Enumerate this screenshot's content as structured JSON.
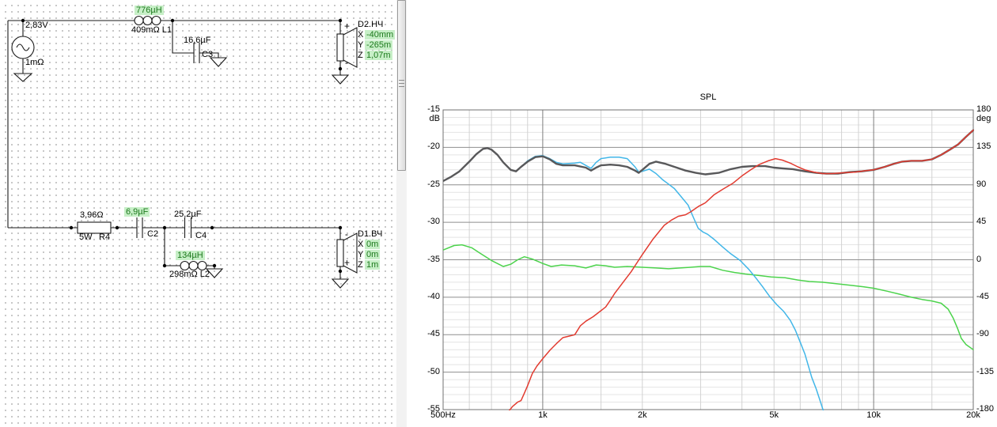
{
  "schematic": {
    "source": {
      "voltage": "2,83V",
      "impedance": "1mΩ"
    },
    "l1": {
      "value": "776µH",
      "detail": "409mΩ L1"
    },
    "c3": {
      "value": "16,6µF",
      "ref": "C3"
    },
    "r4": {
      "value": "3,96Ω",
      "power": "5W",
      "ref": "R4"
    },
    "c2": {
      "value": "6,9µF",
      "ref": "C2"
    },
    "c4": {
      "value": "25,2µF",
      "ref": "C4"
    },
    "l2": {
      "value": "134µH",
      "detail": "298mΩ L2"
    },
    "d2": {
      "name": "D2.НЧ",
      "polarity_top": "+",
      "polarity_bottom": "-",
      "rows": [
        {
          "k": "X",
          "v": "-40mm"
        },
        {
          "k": "Y",
          "v": "-265m"
        },
        {
          "k": "Z",
          "v": "1,07m"
        }
      ]
    },
    "d1": {
      "name": "D1.ВЧ",
      "polarity_top": "-",
      "polarity_bottom": "+",
      "rows": [
        {
          "k": "X",
          "v": "0m"
        },
        {
          "k": "Y",
          "v": "0m"
        },
        {
          "k": "Z",
          "v": "1m"
        }
      ]
    }
  },
  "chart_data": {
    "type": "line",
    "title": "SPL",
    "grid": true,
    "x_axis": {
      "scale": "log",
      "min": 500,
      "max": 20000,
      "ticks": [
        {
          "f": 500,
          "label": "500Hz"
        },
        {
          "f": 1000,
          "label": "1k"
        },
        {
          "f": 2000,
          "label": "2k"
        },
        {
          "f": 5000,
          "label": "5k"
        },
        {
          "f": 10000,
          "label": "10k"
        },
        {
          "f": 20000,
          "label": "20k"
        }
      ],
      "major_gridlines": [
        1000,
        10000
      ],
      "minor_gridlines": [
        600,
        700,
        800,
        900,
        1500,
        2000,
        3000,
        4000,
        5000,
        6000,
        7000,
        8000,
        9000,
        15000
      ]
    },
    "y_left": {
      "unit": "dB",
      "min": -55,
      "max": -15,
      "major_step": 5,
      "minor_step": 1,
      "ticks": [
        {
          "v": -15,
          "label": "-15"
        },
        {
          "v": -20,
          "label": "-20"
        },
        {
          "v": -25,
          "label": "-25"
        },
        {
          "v": -30,
          "label": "-30"
        },
        {
          "v": -35,
          "label": "-35"
        },
        {
          "v": -40,
          "label": "-40"
        },
        {
          "v": -45,
          "label": "-45"
        },
        {
          "v": -50,
          "label": "-50"
        },
        {
          "v": -55,
          "label": "-55"
        }
      ]
    },
    "y_right": {
      "unit": "deg",
      "min": -180,
      "max": 180,
      "ticks": [
        {
          "v": 180,
          "label": "180"
        },
        {
          "v": 135,
          "label": "135"
        },
        {
          "v": 90,
          "label": "90"
        },
        {
          "v": 45,
          "label": "45"
        },
        {
          "v": 0,
          "label": "0"
        },
        {
          "v": -45,
          "label": "-45"
        },
        {
          "v": -90,
          "label": "-90"
        },
        {
          "v": -135,
          "label": "-135"
        },
        {
          "v": -180,
          "label": "-180"
        }
      ]
    },
    "series": [
      {
        "name": "green-aux-curve",
        "color": "#4cd34c",
        "width": 1.5,
        "points": [
          [
            500,
            -33.7
          ],
          [
            540,
            -33.1
          ],
          [
            570,
            -33.0
          ],
          [
            610,
            -33.4
          ],
          [
            650,
            -34.2
          ],
          [
            700,
            -35.1
          ],
          [
            760,
            -35.9
          ],
          [
            800,
            -35.6
          ],
          [
            840,
            -35.0
          ],
          [
            880,
            -34.6
          ],
          [
            930,
            -34.9
          ],
          [
            1000,
            -35.5
          ],
          [
            1060,
            -35.9
          ],
          [
            1140,
            -35.7
          ],
          [
            1250,
            -35.8
          ],
          [
            1350,
            -36.1
          ],
          [
            1450,
            -35.7
          ],
          [
            1550,
            -35.8
          ],
          [
            1650,
            -36.0
          ],
          [
            1800,
            -35.9
          ],
          [
            2000,
            -36.0
          ],
          [
            2200,
            -36.1
          ],
          [
            2400,
            -36.2
          ],
          [
            2600,
            -36.1
          ],
          [
            2800,
            -36.0
          ],
          [
            3000,
            -35.9
          ],
          [
            3200,
            -35.9
          ],
          [
            3500,
            -36.4
          ],
          [
            3800,
            -36.7
          ],
          [
            4100,
            -36.9
          ],
          [
            4500,
            -37.1
          ],
          [
            4900,
            -37.3
          ],
          [
            5400,
            -37.4
          ],
          [
            5900,
            -37.7
          ],
          [
            6400,
            -37.9
          ],
          [
            7000,
            -38.0
          ],
          [
            7700,
            -38.2
          ],
          [
            8500,
            -38.4
          ],
          [
            9300,
            -38.6
          ],
          [
            10000,
            -38.8
          ],
          [
            11000,
            -39.2
          ],
          [
            12000,
            -39.6
          ],
          [
            13000,
            -40.0
          ],
          [
            14000,
            -40.3
          ],
          [
            15000,
            -40.5
          ],
          [
            16000,
            -40.8
          ],
          [
            16800,
            -41.6
          ],
          [
            17400,
            -42.8
          ],
          [
            17900,
            -44.1
          ],
          [
            18400,
            -45.5
          ],
          [
            19000,
            -46.3
          ],
          [
            20000,
            -47.0
          ]
        ]
      },
      {
        "name": "woofer-lowpass",
        "color": "#41b6e8",
        "width": 1.5,
        "points": [
          [
            500,
            -24.5
          ],
          [
            530,
            -23.9
          ],
          [
            560,
            -23.2
          ],
          [
            600,
            -21.9
          ],
          [
            630,
            -20.9
          ],
          [
            660,
            -20.2
          ],
          [
            680,
            -20.1
          ],
          [
            700,
            -20.3
          ],
          [
            730,
            -21.0
          ],
          [
            760,
            -22.0
          ],
          [
            800,
            -23.0
          ],
          [
            830,
            -23.2
          ],
          [
            860,
            -22.6
          ],
          [
            900,
            -21.8
          ],
          [
            950,
            -21.2
          ],
          [
            1000,
            -21.1
          ],
          [
            1050,
            -21.5
          ],
          [
            1100,
            -22.0
          ],
          [
            1150,
            -22.2
          ],
          [
            1250,
            -22.1
          ],
          [
            1300,
            -22.0
          ],
          [
            1400,
            -22.8
          ],
          [
            1450,
            -22.0
          ],
          [
            1500,
            -21.5
          ],
          [
            1600,
            -21.3
          ],
          [
            1700,
            -21.3
          ],
          [
            1800,
            -21.5
          ],
          [
            1900,
            -22.6
          ],
          [
            1950,
            -23.3
          ],
          [
            2000,
            -23.2
          ],
          [
            2100,
            -22.9
          ],
          [
            2200,
            -23.5
          ],
          [
            2300,
            -24.3
          ],
          [
            2400,
            -24.9
          ],
          [
            2500,
            -25.5
          ],
          [
            2600,
            -26.4
          ],
          [
            2750,
            -27.7
          ],
          [
            2850,
            -29.3
          ],
          [
            2950,
            -30.8
          ],
          [
            3050,
            -31.3
          ],
          [
            3150,
            -31.6
          ],
          [
            3300,
            -32.3
          ],
          [
            3500,
            -33.3
          ],
          [
            3700,
            -34.2
          ],
          [
            3950,
            -35.1
          ],
          [
            4200,
            -36.3
          ],
          [
            4400,
            -37.4
          ],
          [
            4600,
            -38.5
          ],
          [
            4850,
            -39.9
          ],
          [
            5100,
            -41.0
          ],
          [
            5350,
            -41.9
          ],
          [
            5600,
            -43.1
          ],
          [
            5800,
            -44.4
          ],
          [
            6000,
            -46.0
          ],
          [
            6200,
            -47.6
          ],
          [
            6500,
            -50.7
          ],
          [
            6700,
            -52.2
          ],
          [
            6900,
            -53.9
          ],
          [
            7100,
            -55.6
          ]
        ]
      },
      {
        "name": "system-sum",
        "color": "#58585a",
        "width": 2.4,
        "points": [
          [
            500,
            -24.5
          ],
          [
            530,
            -23.9
          ],
          [
            560,
            -23.2
          ],
          [
            600,
            -21.9
          ],
          [
            630,
            -20.9
          ],
          [
            660,
            -20.2
          ],
          [
            680,
            -20.1
          ],
          [
            700,
            -20.3
          ],
          [
            730,
            -21.0
          ],
          [
            760,
            -22.0
          ],
          [
            800,
            -23.0
          ],
          [
            830,
            -23.2
          ],
          [
            860,
            -22.6
          ],
          [
            900,
            -21.9
          ],
          [
            950,
            -21.3
          ],
          [
            1000,
            -21.2
          ],
          [
            1050,
            -21.6
          ],
          [
            1100,
            -22.2
          ],
          [
            1150,
            -22.4
          ],
          [
            1250,
            -22.4
          ],
          [
            1350,
            -22.7
          ],
          [
            1400,
            -23.1
          ],
          [
            1450,
            -22.7
          ],
          [
            1500,
            -22.4
          ],
          [
            1600,
            -22.3
          ],
          [
            1700,
            -22.4
          ],
          [
            1800,
            -22.6
          ],
          [
            1900,
            -23.1
          ],
          [
            1950,
            -23.4
          ],
          [
            2000,
            -23.0
          ],
          [
            2100,
            -22.2
          ],
          [
            2200,
            -21.9
          ],
          [
            2350,
            -22.2
          ],
          [
            2500,
            -22.6
          ],
          [
            2700,
            -23.1
          ],
          [
            2900,
            -23.4
          ],
          [
            3100,
            -23.6
          ],
          [
            3400,
            -23.4
          ],
          [
            3700,
            -22.9
          ],
          [
            4000,
            -22.6
          ],
          [
            4300,
            -22.5
          ],
          [
            4700,
            -22.5
          ],
          [
            5000,
            -22.7
          ],
          [
            5300,
            -22.8
          ],
          [
            5700,
            -22.9
          ],
          [
            6200,
            -23.2
          ],
          [
            6700,
            -23.4
          ],
          [
            7200,
            -23.5
          ],
          [
            7800,
            -23.5
          ],
          [
            8500,
            -23.3
          ],
          [
            9200,
            -23.2
          ],
          [
            10000,
            -23.0
          ],
          [
            10800,
            -22.6
          ],
          [
            11500,
            -22.2
          ],
          [
            12200,
            -21.9
          ],
          [
            13000,
            -21.8
          ],
          [
            14000,
            -21.8
          ],
          [
            15000,
            -21.6
          ],
          [
            16000,
            -21.0
          ],
          [
            17000,
            -20.3
          ],
          [
            18000,
            -19.6
          ],
          [
            19000,
            -18.6
          ],
          [
            20000,
            -17.7
          ]
        ]
      },
      {
        "name": "tweeter-highpass",
        "color": "#e23b30",
        "width": 1.5,
        "points": [
          [
            790,
            -55.2
          ],
          [
            810,
            -54.6
          ],
          [
            840,
            -54.0
          ],
          [
            860,
            -53.8
          ],
          [
            880,
            -52.8
          ],
          [
            900,
            -51.8
          ],
          [
            930,
            -50.2
          ],
          [
            960,
            -49.2
          ],
          [
            1000,
            -48.2
          ],
          [
            1050,
            -47.1
          ],
          [
            1100,
            -46.2
          ],
          [
            1150,
            -45.4
          ],
          [
            1200,
            -45.2
          ],
          [
            1250,
            -45.0
          ],
          [
            1300,
            -43.8
          ],
          [
            1350,
            -43.2
          ],
          [
            1420,
            -42.6
          ],
          [
            1500,
            -41.8
          ],
          [
            1550,
            -41.3
          ],
          [
            1600,
            -40.4
          ],
          [
            1650,
            -39.5
          ],
          [
            1750,
            -38.0
          ],
          [
            1850,
            -36.6
          ],
          [
            2000,
            -34.3
          ],
          [
            2150,
            -32.3
          ],
          [
            2330,
            -30.4
          ],
          [
            2450,
            -29.7
          ],
          [
            2570,
            -29.2
          ],
          [
            2700,
            -29.0
          ],
          [
            2800,
            -28.6
          ],
          [
            2950,
            -27.9
          ],
          [
            3100,
            -27.4
          ],
          [
            3300,
            -26.3
          ],
          [
            3500,
            -25.6
          ],
          [
            3750,
            -24.8
          ],
          [
            4000,
            -23.8
          ],
          [
            4250,
            -23.0
          ],
          [
            4500,
            -22.3
          ],
          [
            4800,
            -21.8
          ],
          [
            5050,
            -21.5
          ],
          [
            5300,
            -21.7
          ],
          [
            5600,
            -22.1
          ],
          [
            5900,
            -22.6
          ],
          [
            6200,
            -23.0
          ],
          [
            6600,
            -23.3
          ],
          [
            7000,
            -23.5
          ],
          [
            7500,
            -23.5
          ],
          [
            8000,
            -23.4
          ],
          [
            8800,
            -23.3
          ],
          [
            9500,
            -23.1
          ],
          [
            10000,
            -23.0
          ],
          [
            10800,
            -22.6
          ],
          [
            11500,
            -22.2
          ],
          [
            12200,
            -21.9
          ],
          [
            13000,
            -21.8
          ],
          [
            14000,
            -21.8
          ],
          [
            15000,
            -21.6
          ],
          [
            16000,
            -21.0
          ],
          [
            17000,
            -20.3
          ],
          [
            18000,
            -19.6
          ],
          [
            19000,
            -18.6
          ],
          [
            20000,
            -17.7
          ]
        ]
      }
    ]
  }
}
